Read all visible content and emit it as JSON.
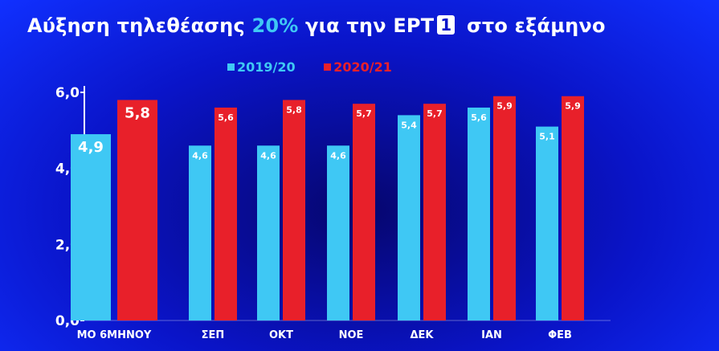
{
  "title": {
    "prefix": "Αύξηση τηλεθέασης",
    "highlight": "20%",
    "middle": "για την",
    "brand": "ΕΡΤ",
    "brand_box": "1",
    "suffix": "στο εξάμηνο"
  },
  "colors": {
    "background": "#0a14c8",
    "series_2019": "#3fc8f4",
    "series_2020": "#e8202a",
    "text": "#ffffff"
  },
  "chart_data": {
    "type": "bar",
    "categories": [
      "ΜΟ 6ΜΗΝΟΥ",
      "ΣΕΠ",
      "ΟΚΤ",
      "ΝΟΕ",
      "ΔΕΚ",
      "ΙΑΝ",
      "ΦΕΒ"
    ],
    "series": [
      {
        "name": "2019/20",
        "values": [
          4.9,
          4.6,
          4.6,
          4.6,
          5.4,
          5.6,
          5.1
        ],
        "labels": [
          "4,9",
          "4,6",
          "4,6",
          "4,6",
          "5,4",
          "5,6",
          "5,1"
        ]
      },
      {
        "name": "2020/21",
        "values": [
          5.8,
          5.6,
          5.8,
          5.7,
          5.7,
          5.9,
          5.9
        ],
        "labels": [
          "5,8",
          "5,6",
          "5,8",
          "5,7",
          "5,7",
          "5,9",
          "5,9"
        ]
      }
    ],
    "y_ticks": [
      "0,0",
      "2,0",
      "4,0",
      "6,0"
    ],
    "y_tick_values": [
      0,
      2,
      4,
      6
    ],
    "ylim": [
      0,
      6
    ],
    "legend_position": "top-center",
    "grid": false
  }
}
